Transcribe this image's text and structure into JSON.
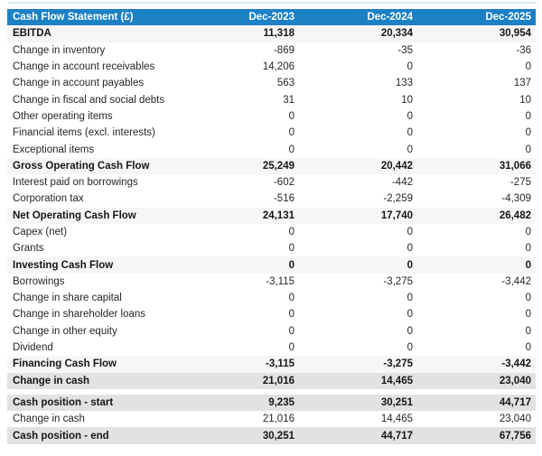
{
  "accent_color": "#1c80c5",
  "subtotal_row_color": "#f6f6f8",
  "total_row_color": "#e2e2e4",
  "chart_data": {
    "type": "table",
    "title": "Cash Flow Statement (£)",
    "columns": [
      "Dec-2023",
      "Dec-2024",
      "Dec-2025"
    ],
    "rows": [
      {
        "label": "EBITDA",
        "values": [
          "11,318",
          "20,334",
          "30,954"
        ],
        "style": "subtotal",
        "gap_after": false
      },
      {
        "label": "Change in inventory",
        "values": [
          "-869",
          "-35",
          "-36"
        ],
        "style": "normal",
        "gap_after": false
      },
      {
        "label": "Change in account receivables",
        "values": [
          "14,206",
          "0",
          "0"
        ],
        "style": "normal",
        "gap_after": false
      },
      {
        "label": "Change in account payables",
        "values": [
          "563",
          "133",
          "137"
        ],
        "style": "normal",
        "gap_after": false
      },
      {
        "label": "Change in fiscal and social debts",
        "values": [
          "31",
          "10",
          "10"
        ],
        "style": "normal",
        "gap_after": false
      },
      {
        "label": "Other operating items",
        "values": [
          "0",
          "0",
          "0"
        ],
        "style": "normal",
        "gap_after": false
      },
      {
        "label": "Financial items (excl. interests)",
        "values": [
          "0",
          "0",
          "0"
        ],
        "style": "normal",
        "gap_after": false
      },
      {
        "label": "Exceptional items",
        "values": [
          "0",
          "0",
          "0"
        ],
        "style": "normal",
        "gap_after": false
      },
      {
        "label": "Gross Operating Cash Flow",
        "values": [
          "25,249",
          "20,442",
          "31,066"
        ],
        "style": "subtotal",
        "gap_after": false
      },
      {
        "label": "Interest paid on borrowings",
        "values": [
          "-602",
          "-442",
          "-275"
        ],
        "style": "normal",
        "gap_after": false
      },
      {
        "label": "Corporation tax",
        "values": [
          "-516",
          "-2,259",
          "-4,309"
        ],
        "style": "normal",
        "gap_after": false
      },
      {
        "label": "Net Operating Cash Flow",
        "values": [
          "24,131",
          "17,740",
          "26,482"
        ],
        "style": "subtotal",
        "gap_after": false
      },
      {
        "label": "Capex (net)",
        "values": [
          "0",
          "0",
          "0"
        ],
        "style": "normal",
        "gap_after": false
      },
      {
        "label": "Grants",
        "values": [
          "0",
          "0",
          "0"
        ],
        "style": "normal",
        "gap_after": false
      },
      {
        "label": "Investing Cash Flow",
        "values": [
          "0",
          "0",
          "0"
        ],
        "style": "subtotal",
        "gap_after": false
      },
      {
        "label": "Borrowings",
        "values": [
          "-3,115",
          "-3,275",
          "-3,442"
        ],
        "style": "normal",
        "gap_after": false
      },
      {
        "label": "Change in share capital",
        "values": [
          "0",
          "0",
          "0"
        ],
        "style": "normal",
        "gap_after": false
      },
      {
        "label": "Change in shareholder loans",
        "values": [
          "0",
          "0",
          "0"
        ],
        "style": "normal",
        "gap_after": false
      },
      {
        "label": "Change in other equity",
        "values": [
          "0",
          "0",
          "0"
        ],
        "style": "normal",
        "gap_after": false
      },
      {
        "label": "Dividend",
        "values": [
          "0",
          "0",
          "0"
        ],
        "style": "normal",
        "gap_after": false
      },
      {
        "label": "Financing Cash Flow",
        "values": [
          "-3,115",
          "-3,275",
          "-3,442"
        ],
        "style": "subtotal",
        "gap_after": false
      },
      {
        "label": "Change in cash",
        "values": [
          "21,016",
          "14,465",
          "23,040"
        ],
        "style": "total",
        "gap_after": true
      },
      {
        "label": "Cash position - start",
        "values": [
          "9,235",
          "30,251",
          "44,717"
        ],
        "style": "total",
        "gap_after": false
      },
      {
        "label": "Change in cash",
        "values": [
          "21,016",
          "14,465",
          "23,040"
        ],
        "style": "normal",
        "gap_after": false
      },
      {
        "label": "Cash position - end",
        "values": [
          "30,251",
          "44,717",
          "67,756"
        ],
        "style": "total",
        "gap_after": false
      }
    ]
  }
}
